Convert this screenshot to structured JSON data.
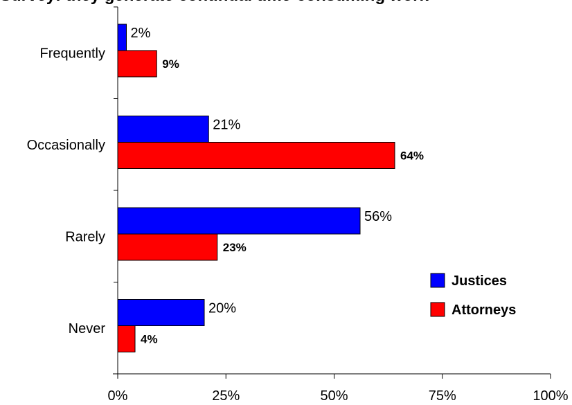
{
  "chart_data": {
    "type": "bar",
    "orientation": "horizontal",
    "title": "Survey: they generate continual time-consuming work",
    "categories": [
      "Frequently",
      "Occasionally",
      "Rarely",
      "Never"
    ],
    "series": [
      {
        "name": "Justices",
        "values": [
          2,
          21,
          56,
          20
        ],
        "color": "#0000ff",
        "label_weight": "normal"
      },
      {
        "name": "Attorneys",
        "values": [
          9,
          64,
          23,
          4
        ],
        "color": "#ff0000",
        "label_weight": "bold"
      }
    ],
    "xaxis": {
      "ticks": [
        "0%",
        "25%",
        "50%",
        "75%",
        "100%"
      ],
      "range": [
        0,
        100
      ]
    },
    "legend_placement": "right",
    "grid": false
  }
}
